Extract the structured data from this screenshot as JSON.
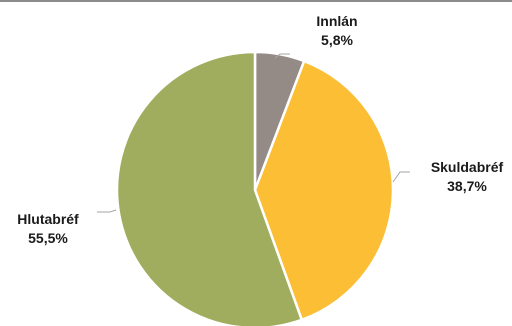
{
  "chart_data": {
    "type": "pie",
    "title": "",
    "slices": [
      {
        "name": "Innlán",
        "value": 5.8,
        "label": "5,8%",
        "color": "#958b86"
      },
      {
        "name": "Skuldabréf",
        "value": 38.7,
        "label": "38,7%",
        "color": "#fbbe35"
      },
      {
        "name": "Hlutabréf",
        "value": 55.5,
        "label": "55,5%",
        "color": "#a0ad5e"
      }
    ],
    "start_angle": "12 o'clock",
    "direction": "clockwise",
    "legend": "none",
    "label_style": "outside with leader lines"
  }
}
